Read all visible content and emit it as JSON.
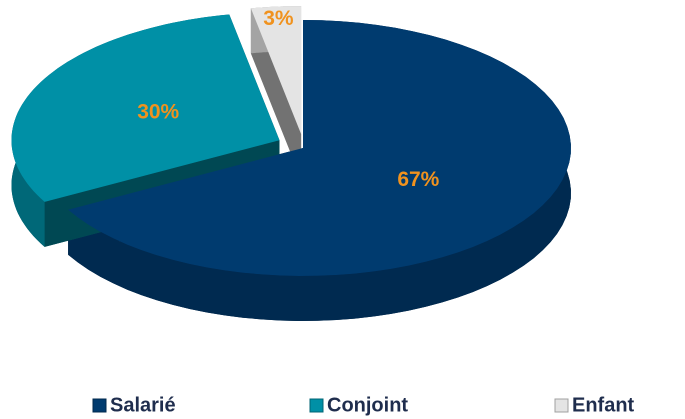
{
  "chart_data": {
    "type": "pie",
    "categories": [
      "Salarié",
      "Conjoint",
      "Enfant"
    ],
    "values": [
      67,
      30,
      3
    ],
    "value_labels": [
      "67%",
      "30%",
      "3%"
    ],
    "colors": [
      "#003b6f",
      "#0090a6",
      "#e4e4e4"
    ],
    "label_color": "#f0921e",
    "legend": "bottom"
  }
}
